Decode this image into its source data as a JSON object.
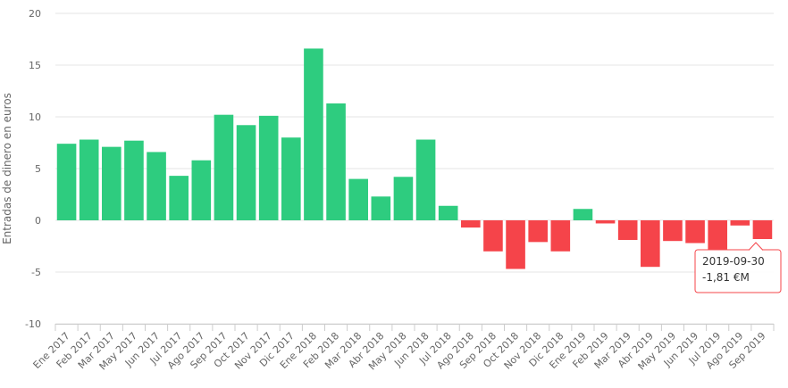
{
  "chart_data": {
    "type": "bar",
    "ylabel": "Entradas de dinero en euros",
    "ylim": [
      -10,
      20
    ],
    "yticks": [
      -10,
      -5,
      0,
      5,
      10,
      15,
      20
    ],
    "grid": true,
    "colors": {
      "positive": "#2ecc7f",
      "negative": "#f5444a"
    },
    "categories": [
      "Ene 2017",
      "Feb 2017",
      "Mar 2017",
      "May 2017",
      "Jun 2017",
      "Jul 2017",
      "Ago 2017",
      "Sep 2017",
      "Oct 2017",
      "Nov 2017",
      "Dic 2017",
      "Ene 2018",
      "Feb 2018",
      "Mar 2018",
      "Abr 2018",
      "May 2018",
      "Jun 2018",
      "Jul 2018",
      "Ago 2018",
      "Sep 2018",
      "Oct 2018",
      "Nov 2018",
      "Dic 2018",
      "Ene 2019",
      "Feb 2019",
      "Mar 2019",
      "Abr 2019",
      "May 2019",
      "Jun 2019",
      "Jul 2019",
      "Ago 2019",
      "Sep 2019"
    ],
    "values": [
      7.4,
      7.8,
      7.1,
      7.7,
      6.6,
      4.3,
      5.8,
      10.2,
      9.2,
      10.1,
      8.0,
      16.6,
      11.3,
      4.0,
      2.3,
      4.2,
      7.8,
      1.4,
      -0.7,
      -3.0,
      -4.7,
      -2.1,
      -3.0,
      1.1,
      -0.3,
      -1.9,
      -4.5,
      -2.0,
      -2.2,
      -2.8,
      -0.5,
      -1.81
    ],
    "tooltip": {
      "category_index": 31,
      "date": "2019-09-30",
      "value_text": "-1,81 €M"
    }
  }
}
